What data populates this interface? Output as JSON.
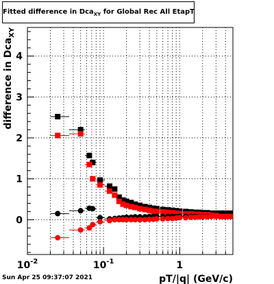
{
  "chart_data": {
    "type": "scatter",
    "title": "Fitted difference in Dca",
    "title_sub": "XY",
    "title_suffix": " for Global Rec All EtapT",
    "ylabel": "difference in Dca",
    "ylabel_sub": "XY",
    "xlabel": "pT/|q| (GeV/c)",
    "x_scale": "log",
    "xlim": [
      0.01,
      5
    ],
    "ylim": [
      -0.85,
      4.7
    ],
    "grid": true,
    "x_ticks": [
      {
        "value": 0.01,
        "base": "10",
        "exp": "-2"
      },
      {
        "value": 0.1,
        "base": "10",
        "exp": "-1"
      },
      {
        "value": 1,
        "base": "1",
        "exp": ""
      }
    ],
    "y_ticks": [
      "0",
      "1",
      "2",
      "3",
      "4"
    ],
    "series": [
      {
        "color": "#000000",
        "marker": "square",
        "points": [
          [
            0.025,
            2.52
          ],
          [
            0.05,
            2.2
          ],
          [
            0.065,
            1.57
          ],
          [
            0.072,
            1.4
          ],
          [
            0.09,
            0.97
          ],
          [
            0.12,
            0.82
          ],
          [
            0.14,
            0.75
          ],
          [
            0.16,
            0.55
          ],
          [
            0.18,
            0.48
          ],
          [
            0.2,
            0.45
          ],
          [
            0.23,
            0.42
          ],
          [
            0.26,
            0.38
          ],
          [
            0.3,
            0.35
          ],
          [
            0.35,
            0.32
          ],
          [
            0.4,
            0.3
          ],
          [
            0.45,
            0.28
          ],
          [
            0.5,
            0.27
          ],
          [
            0.6,
            0.25
          ],
          [
            0.7,
            0.24
          ],
          [
            0.8,
            0.23
          ],
          [
            0.9,
            0.22
          ],
          [
            1.0,
            0.21
          ],
          [
            1.2,
            0.2
          ],
          [
            1.4,
            0.19
          ],
          [
            1.6,
            0.18
          ],
          [
            1.8,
            0.18
          ],
          [
            2.0,
            0.17
          ],
          [
            2.3,
            0.17
          ],
          [
            2.6,
            0.16
          ],
          [
            3.0,
            0.16
          ],
          [
            3.5,
            0.16
          ],
          [
            4.0,
            0.16
          ],
          [
            4.6,
            0.16
          ]
        ]
      },
      {
        "color": "#ff0000",
        "marker": "square",
        "points": [
          [
            0.025,
            2.06
          ],
          [
            0.05,
            2.1
          ],
          [
            0.065,
            1.35
          ],
          [
            0.072,
            1.0
          ],
          [
            0.09,
            0.85
          ],
          [
            0.12,
            0.7
          ],
          [
            0.14,
            0.6
          ],
          [
            0.16,
            0.45
          ],
          [
            0.18,
            0.38
          ],
          [
            0.2,
            0.35
          ],
          [
            0.23,
            0.32
          ],
          [
            0.26,
            0.3
          ],
          [
            0.3,
            0.27
          ],
          [
            0.35,
            0.25
          ],
          [
            0.4,
            0.23
          ],
          [
            0.45,
            0.21
          ],
          [
            0.5,
            0.2
          ],
          [
            0.6,
            0.19
          ],
          [
            0.7,
            0.18
          ],
          [
            0.8,
            0.17
          ],
          [
            0.9,
            0.16
          ],
          [
            1.0,
            0.15
          ],
          [
            1.2,
            0.14
          ],
          [
            1.4,
            0.14
          ],
          [
            1.6,
            0.13
          ],
          [
            1.8,
            0.13
          ],
          [
            2.0,
            0.12
          ],
          [
            2.3,
            0.12
          ],
          [
            2.6,
            0.11
          ],
          [
            3.0,
            0.1
          ],
          [
            3.5,
            0.08
          ],
          [
            4.0,
            0.08
          ],
          [
            4.6,
            0.08
          ]
        ]
      },
      {
        "color": "#000000",
        "marker": "circle",
        "points": [
          [
            0.025,
            0.15
          ],
          [
            0.05,
            0.22
          ],
          [
            0.065,
            0.28
          ],
          [
            0.072,
            0.27
          ],
          [
            0.09,
            0.05
          ],
          [
            0.12,
            0.02
          ],
          [
            0.14,
            0.03
          ],
          [
            0.16,
            0.04
          ],
          [
            0.18,
            0.05
          ],
          [
            0.2,
            0.06
          ],
          [
            0.23,
            0.06
          ],
          [
            0.26,
            0.07
          ],
          [
            0.3,
            0.07
          ],
          [
            0.35,
            0.07
          ],
          [
            0.4,
            0.08
          ],
          [
            0.45,
            0.08
          ],
          [
            0.5,
            0.08
          ],
          [
            0.6,
            0.08
          ],
          [
            0.7,
            0.08
          ],
          [
            0.8,
            0.08
          ],
          [
            0.9,
            0.08
          ],
          [
            1.0,
            0.08
          ],
          [
            1.2,
            0.08
          ],
          [
            1.4,
            0.08
          ],
          [
            1.6,
            0.08
          ],
          [
            1.8,
            0.08
          ],
          [
            2.0,
            0.08
          ],
          [
            2.3,
            0.08
          ],
          [
            2.6,
            0.08
          ],
          [
            3.0,
            0.08
          ],
          [
            3.5,
            0.08
          ],
          [
            4.0,
            0.08
          ],
          [
            4.6,
            0.08
          ]
        ]
      },
      {
        "color": "#ff0000",
        "marker": "circle",
        "points": [
          [
            0.025,
            -0.44
          ],
          [
            0.05,
            -0.25
          ],
          [
            0.065,
            -0.2
          ],
          [
            0.072,
            -0.12
          ],
          [
            0.09,
            -0.05
          ],
          [
            0.12,
            -0.02
          ],
          [
            0.14,
            0.0
          ],
          [
            0.16,
            0.0
          ],
          [
            0.18,
            0.0
          ],
          [
            0.2,
            0.0
          ],
          [
            0.23,
            0.0
          ],
          [
            0.26,
            0.0
          ],
          [
            0.3,
            0.0
          ],
          [
            0.35,
            0.0
          ],
          [
            0.4,
            0.01
          ],
          [
            0.45,
            0.01
          ],
          [
            0.5,
            0.02
          ],
          [
            0.6,
            0.02
          ],
          [
            0.7,
            0.03
          ],
          [
            0.8,
            0.03
          ],
          [
            0.9,
            0.04
          ],
          [
            1.0,
            0.05
          ],
          [
            1.2,
            0.05
          ],
          [
            1.4,
            0.06
          ],
          [
            1.6,
            0.06
          ],
          [
            1.8,
            0.07
          ],
          [
            2.0,
            0.07
          ],
          [
            2.3,
            0.07
          ],
          [
            2.6,
            0.08
          ],
          [
            3.0,
            0.08
          ],
          [
            3.5,
            0.08
          ],
          [
            4.0,
            0.08
          ],
          [
            4.6,
            0.08
          ]
        ]
      }
    ]
  },
  "footer": {
    "date": "Sun Apr 25 09:37:07 2021"
  }
}
